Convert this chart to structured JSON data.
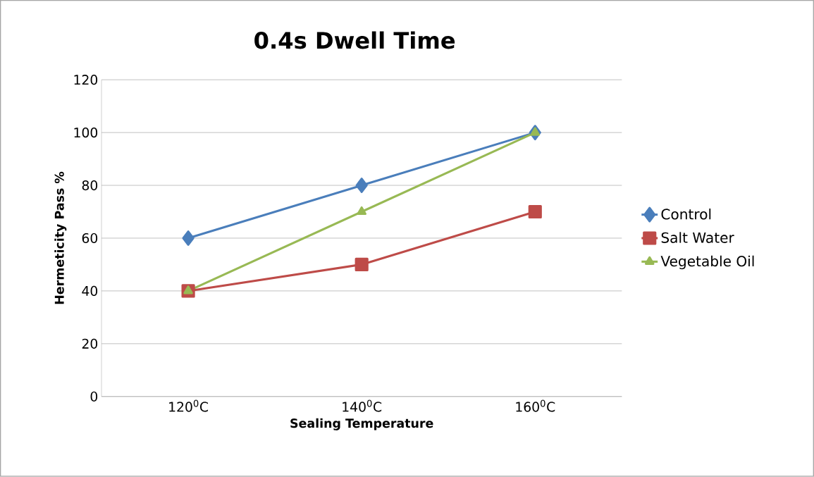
{
  "chart_data": {
    "type": "line",
    "title": "0.4s Dwell Time",
    "xlabel": "Sealing Temperature",
    "ylabel": "Hermeticity Pass %",
    "categories": [
      "120$^{0}$C",
      "140$^{0}$C",
      "160$^{0}$C"
    ],
    "series": [
      {
        "name": "Control",
        "color": "#4a7ebb",
        "marker": "diamond",
        "values": [
          60,
          80,
          100
        ]
      },
      {
        "name": "Salt Water",
        "color": "#be4b48",
        "marker": "square",
        "values": [
          40,
          50,
          70
        ]
      },
      {
        "name": "Vegetable Oil",
        "color": "#98b954",
        "marker": "triangle",
        "values": [
          40,
          70,
          100
        ]
      }
    ],
    "ylim": [
      0,
      120
    ],
    "yticks": [
      0,
      20,
      40,
      60,
      80,
      100,
      120
    ],
    "grid": "y",
    "legend": "right",
    "line_style": "solid"
  }
}
